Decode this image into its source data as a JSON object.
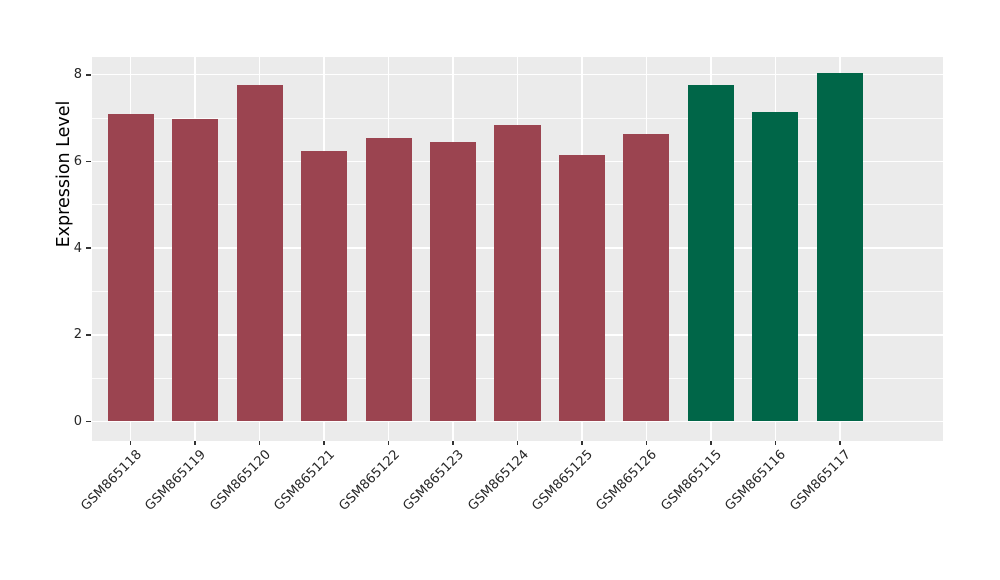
{
  "figure": {
    "background": "#ffffff",
    "panel_background": "#ebebeb",
    "grid_color": "#ffffff",
    "tick_mark_color": "#333333",
    "tick_label_color": "#262626",
    "axis_title_color": "#000000"
  },
  "chart_data": {
    "type": "bar",
    "title": "",
    "xlabel": "",
    "ylabel": "Expression Level",
    "categories": [
      "GSM865118",
      "GSM865119",
      "GSM865120",
      "GSM865121",
      "GSM865122",
      "GSM865123",
      "GSM865124",
      "GSM865125",
      "GSM865126",
      "GSM865115",
      "GSM865116",
      "GSM865117"
    ],
    "values": [
      7.1,
      6.97,
      7.77,
      6.23,
      6.54,
      6.45,
      6.85,
      6.16,
      6.63,
      7.77,
      7.15,
      8.03
    ],
    "colors": [
      "#9b4450",
      "#9b4450",
      "#9b4450",
      "#9b4450",
      "#9b4450",
      "#9b4450",
      "#9b4450",
      "#9b4450",
      "#9b4450",
      "#006648",
      "#006648",
      "#006648"
    ],
    "color_groups": [
      {
        "color": "#9b4450",
        "samples": [
          "GSM865118",
          "GSM865119",
          "GSM865120",
          "GSM865121",
          "GSM865122",
          "GSM865123",
          "GSM865124",
          "GSM865125",
          "GSM865126"
        ]
      },
      {
        "color": "#006648",
        "samples": [
          "GSM865115",
          "GSM865116",
          "GSM865117"
        ]
      }
    ],
    "yticks": [
      0,
      2,
      4,
      6,
      8
    ],
    "minor_yticks": [
      1,
      3,
      5,
      7
    ],
    "ylim": [
      -0.45,
      8.41
    ],
    "grid": true,
    "legend_position": "none",
    "x_tick_rotation_deg": 45
  }
}
